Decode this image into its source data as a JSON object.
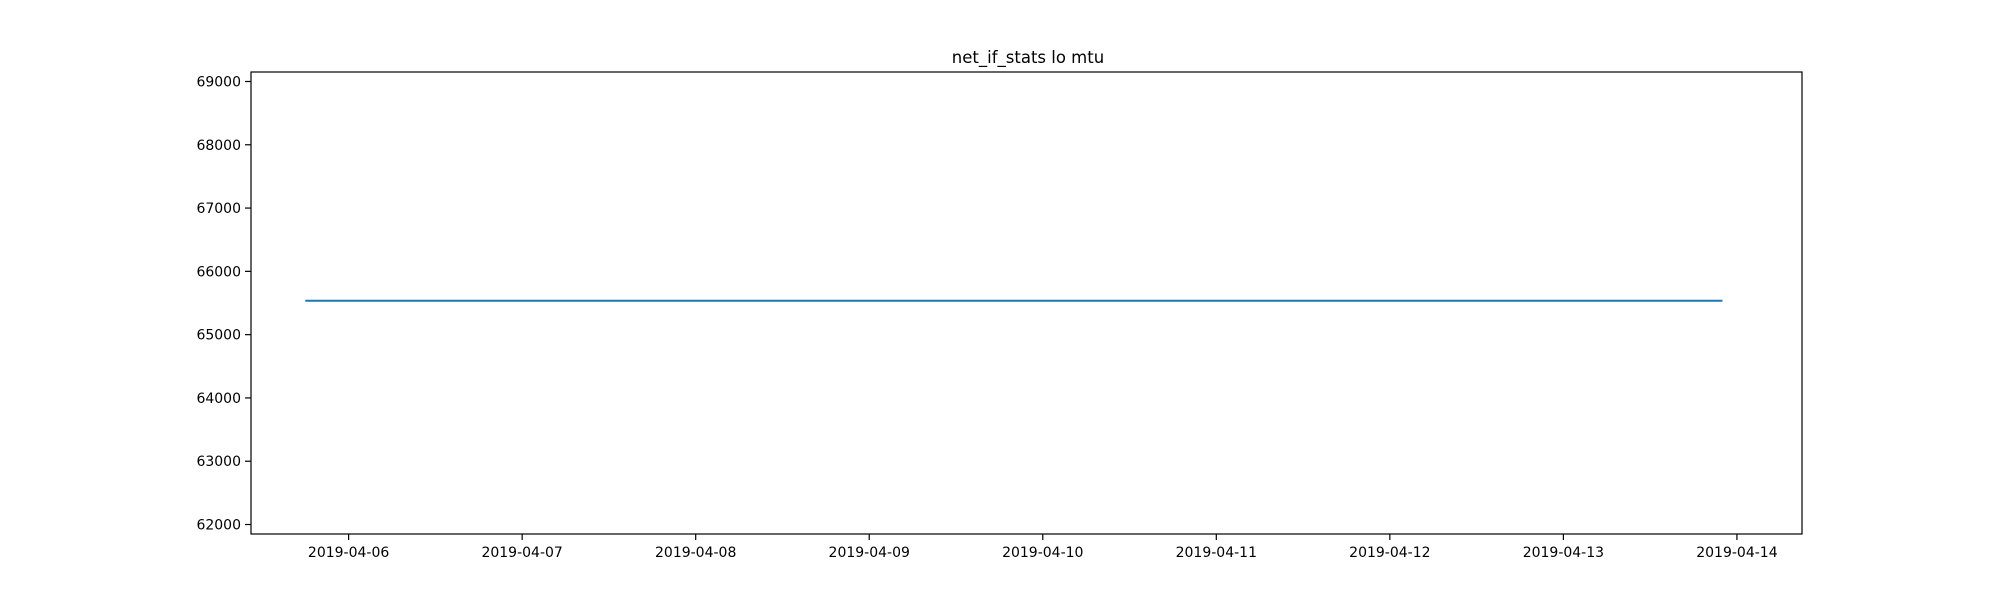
{
  "chart_data": {
    "type": "line",
    "title": "net_if_stats lo mtu",
    "xlabel": "",
    "ylabel": "",
    "x_axis_type": "date",
    "xlim": [
      "2019-04-05T10:30",
      "2019-04-14T09:00"
    ],
    "ylim": [
      61850,
      69150
    ],
    "x_ticks": [
      "2019-04-06",
      "2019-04-07",
      "2019-04-08",
      "2019-04-09",
      "2019-04-10",
      "2019-04-11",
      "2019-04-12",
      "2019-04-13",
      "2019-04-14"
    ],
    "y_ticks": [
      62000,
      63000,
      64000,
      65000,
      66000,
      67000,
      68000,
      69000
    ],
    "grid": false,
    "legend": false,
    "series": [
      {
        "color": "#1f77b4",
        "x": [
          "2019-04-05T18:00",
          "2019-04-13T22:00"
        ],
        "y": [
          65536,
          65536
        ]
      }
    ]
  }
}
